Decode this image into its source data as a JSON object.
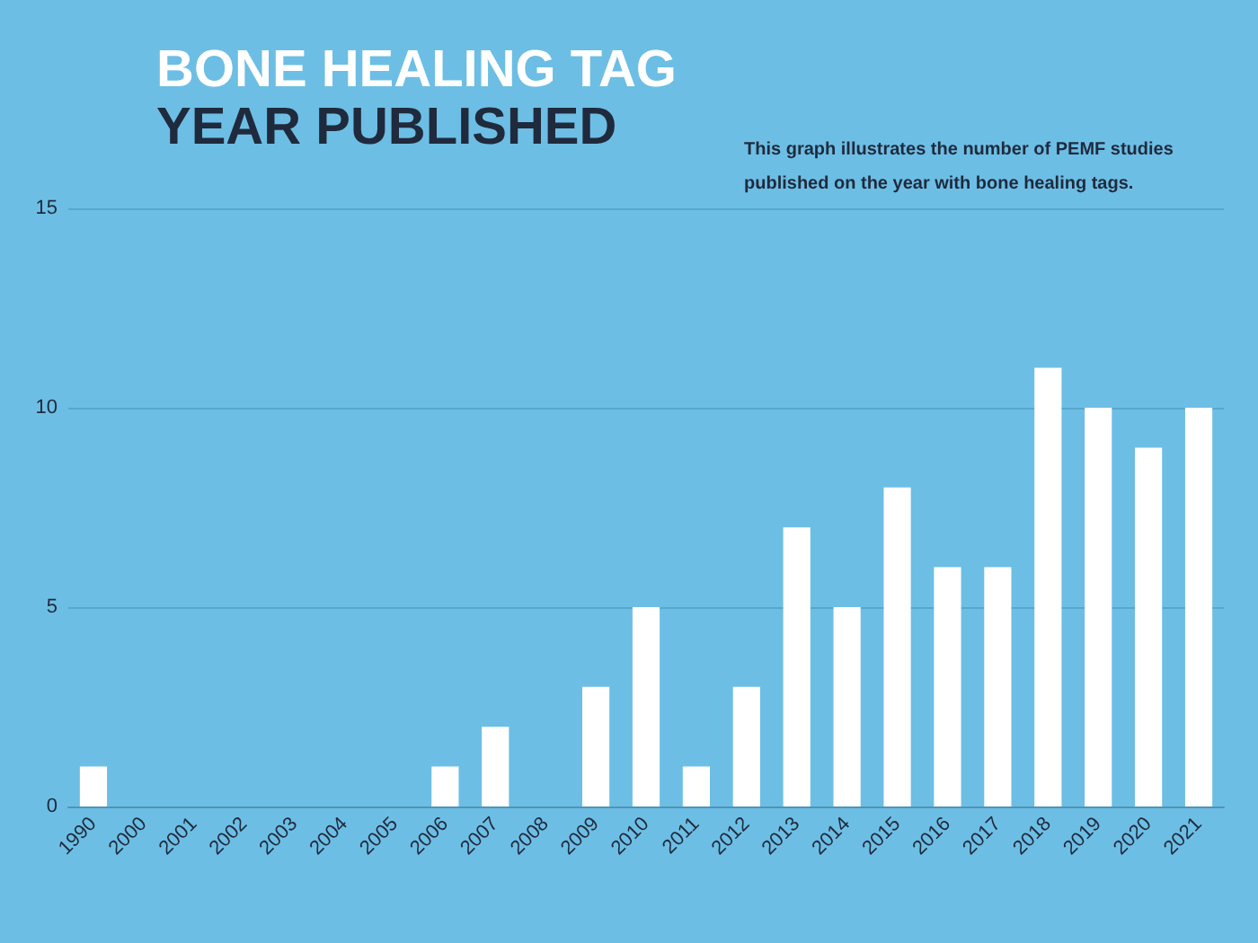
{
  "chart_data": {
    "type": "bar",
    "title": "BONE HEALING TAG",
    "subtitle": "YEAR PUBLISHED",
    "annotations": [
      "This graph illustrates the number of PEMF studies published on the year with bone healing tags."
    ],
    "categories": [
      "1990",
      "2000",
      "2001",
      "2002",
      "2003",
      "2004",
      "2005",
      "2006",
      "2007",
      "2008",
      "2009",
      "2010",
      "2011",
      "2012",
      "2013",
      "2014",
      "2015",
      "2016",
      "2017",
      "2018",
      "2019",
      "2020",
      "2021"
    ],
    "values": [
      1,
      0,
      0,
      0,
      0,
      0,
      0,
      1,
      2,
      0,
      3,
      5,
      1,
      3,
      7,
      5,
      8,
      6,
      6,
      11,
      10,
      9,
      10
    ],
    "color": "#ffffff",
    "ylim": [
      0,
      15
    ],
    "yticks": [
      0,
      5,
      10,
      15
    ],
    "grid": "y"
  }
}
